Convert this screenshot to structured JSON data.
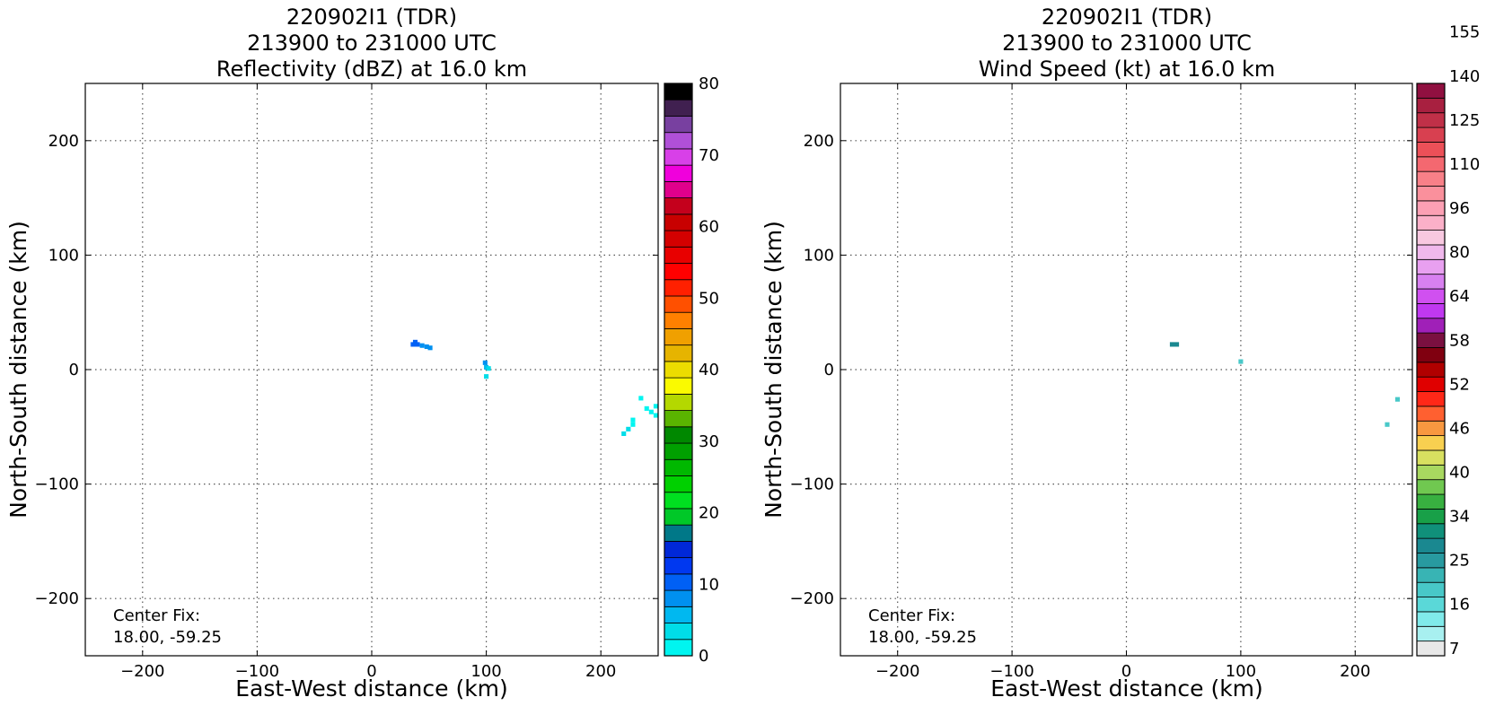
{
  "chart_data": [
    {
      "type": "heatmap",
      "title_lines": [
        "220902I1 (TDR)",
        "213900 to 231000 UTC",
        "Reflectivity (dBZ) at 16.0 km"
      ],
      "xlabel": "East-West distance (km)",
      "ylabel": "North-South distance (km)",
      "xlim": [
        -250,
        250
      ],
      "ylim": [
        -250,
        250
      ],
      "xticks": [
        -200,
        -100,
        0,
        100,
        200
      ],
      "yticks": [
        -200,
        -100,
        0,
        100,
        200
      ],
      "grid": true,
      "annotation_lines": [
        "Center Fix:",
        "18.00, -59.25"
      ],
      "colorbar": {
        "label_values": [
          0,
          10,
          20,
          30,
          40,
          50,
          60,
          70,
          80
        ],
        "bin_edges": [
          0,
          80
        ],
        "colors": [
          "#00f5f0",
          "#00dde8",
          "#00b8f0",
          "#0090f0",
          "#0060f5",
          "#0038f0",
          "#0028d8",
          "#007888",
          "#00c828",
          "#00e020",
          "#00d000",
          "#00b800",
          "#00a000",
          "#008800",
          "#5ab400",
          "#b4d800",
          "#fafa00",
          "#ecdc00",
          "#e6b400",
          "#f0a000",
          "#ff8000",
          "#ff5000",
          "#ff2000",
          "#ff0000",
          "#e80000",
          "#d40000",
          "#c80000",
          "#c4001c",
          "#e0008c",
          "#f000dc",
          "#d840e8",
          "#b050d8",
          "#7840a0",
          "#402050",
          "#000000"
        ]
      },
      "cells": [
        {
          "x": 36,
          "y": 22,
          "value": 10
        },
        {
          "x": 40,
          "y": 22,
          "value": 10
        },
        {
          "x": 44,
          "y": 21,
          "value": 9
        },
        {
          "x": 48,
          "y": 20,
          "value": 8
        },
        {
          "x": 51,
          "y": 19,
          "value": 8
        },
        {
          "x": 38,
          "y": 24,
          "value": 11
        },
        {
          "x": 99,
          "y": 6,
          "value": 7
        },
        {
          "x": 100,
          "y": 2,
          "value": 6
        },
        {
          "x": 102,
          "y": 1,
          "value": 4
        },
        {
          "x": 100,
          "y": -6,
          "value": 3
        },
        {
          "x": 220,
          "y": -56,
          "value": 3
        },
        {
          "x": 224,
          "y": -52,
          "value": 3
        },
        {
          "x": 228,
          "y": -48,
          "value": 2
        },
        {
          "x": 228,
          "y": -44,
          "value": 2
        },
        {
          "x": 235,
          "y": -25,
          "value": 1
        },
        {
          "x": 240,
          "y": -34,
          "value": 1
        },
        {
          "x": 244,
          "y": -37,
          "value": 2
        },
        {
          "x": 248,
          "y": -32,
          "value": 1
        },
        {
          "x": 248,
          "y": -40,
          "value": 2
        }
      ]
    },
    {
      "type": "heatmap",
      "title_lines": [
        "220902I1 (TDR)",
        "213900 to 231000 UTC",
        "Wind Speed (kt) at 16.0 km"
      ],
      "xlabel": "East-West distance (km)",
      "ylabel": "North-South distance (km)",
      "xlim": [
        -250,
        250
      ],
      "ylim": [
        -250,
        250
      ],
      "xticks": [
        -200,
        -100,
        0,
        100,
        200
      ],
      "yticks": [
        -200,
        -100,
        0,
        100,
        200
      ],
      "grid": true,
      "annotation_lines": [
        "Center Fix:",
        "18.00, -59.25"
      ],
      "colorbar": {
        "label_values": [
          7,
          16,
          25,
          34,
          40,
          46,
          52,
          58,
          64,
          80,
          96,
          110,
          125,
          140,
          155
        ],
        "colors": [
          "#e8e8e8",
          "#a8f0f0",
          "#80eaea",
          "#5ad8d8",
          "#48c8c8",
          "#38b4b4",
          "#289aa0",
          "#1a8890",
          "#10907a",
          "#18a048",
          "#38b040",
          "#70c850",
          "#a8d860",
          "#d8e060",
          "#f8d050",
          "#f89840",
          "#ff6030",
          "#ff2818",
          "#e00000",
          "#b00000",
          "#800010",
          "#7a1040",
          "#a020b8",
          "#c038f0",
          "#d050f0",
          "#d880f0",
          "#e8a0f0",
          "#f0b8ec",
          "#f8c8e0",
          "#fbb0c8",
          "#fca0b4",
          "#fa909c",
          "#f88088",
          "#f46870",
          "#ec5058",
          "#d84050",
          "#c03048",
          "#a82040",
          "#901040"
        ]
      },
      "cells": [
        {
          "x": 40,
          "y": 22,
          "value": 24
        },
        {
          "x": 44,
          "y": 22,
          "value": 24
        },
        {
          "x": 100,
          "y": 7,
          "value": 14
        },
        {
          "x": 228,
          "y": -48,
          "value": 13
        },
        {
          "x": 237,
          "y": -26,
          "value": 12
        }
      ]
    }
  ]
}
